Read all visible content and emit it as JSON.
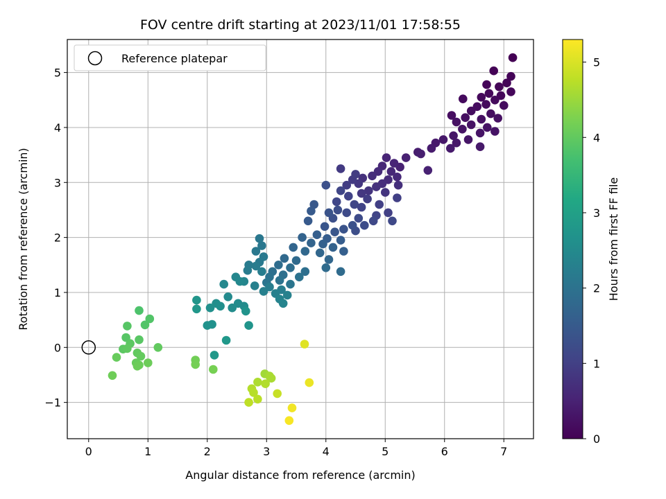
{
  "chart_data": {
    "type": "scatter",
    "title": "FOV centre drift starting at 2023/11/01 17:58:55",
    "xlabel": "Angular distance from reference (arcmin)",
    "ylabel": "Rotation from reference (arcmin)",
    "xlim": [
      -0.36,
      7.5
    ],
    "ylim": [
      -1.66,
      5.6
    ],
    "xticks": [
      0,
      1,
      2,
      3,
      4,
      5,
      6,
      7
    ],
    "yticks": [
      -1,
      0,
      1,
      2,
      3,
      4,
      5
    ],
    "ytick_labels": [
      "−1",
      "0",
      "1",
      "2",
      "3",
      "4",
      "5"
    ],
    "grid": true,
    "legend": {
      "location": "top-left",
      "entries": [
        "Reference platepar"
      ]
    },
    "reference_point": {
      "x": 0,
      "y": 0,
      "marker": "open circle"
    },
    "colorbar": {
      "label": "Hours from first FF file",
      "colormap": "viridis",
      "range": [
        0,
        5.3
      ],
      "ticks": [
        0,
        1,
        2,
        3,
        4,
        5
      ]
    },
    "points": [
      [
        7.15,
        5.27,
        0.0
      ],
      [
        6.83,
        5.03,
        0.03
      ],
      [
        7.12,
        4.93,
        0.05
      ],
      [
        7.05,
        4.81,
        0.05
      ],
      [
        6.71,
        4.78,
        0.06
      ],
      [
        6.92,
        4.74,
        0.07
      ],
      [
        7.12,
        4.65,
        0.09
      ],
      [
        6.75,
        4.62,
        0.1
      ],
      [
        6.95,
        4.58,
        0.1
      ],
      [
        6.62,
        4.55,
        0.12
      ],
      [
        6.85,
        4.5,
        0.13
      ],
      [
        6.31,
        4.52,
        0.14
      ],
      [
        6.7,
        4.42,
        0.15
      ],
      [
        7.0,
        4.4,
        0.16
      ],
      [
        6.55,
        4.38,
        0.17
      ],
      [
        6.45,
        4.3,
        0.18
      ],
      [
        6.78,
        4.25,
        0.19
      ],
      [
        6.12,
        4.22,
        0.2
      ],
      [
        6.35,
        4.18,
        0.21
      ],
      [
        6.62,
        4.15,
        0.22
      ],
      [
        6.9,
        4.17,
        0.23
      ],
      [
        6.2,
        4.1,
        0.24
      ],
      [
        6.45,
        4.05,
        0.25
      ],
      [
        6.72,
        4.0,
        0.26
      ],
      [
        6.3,
        3.97,
        0.27
      ],
      [
        6.85,
        3.93,
        0.28
      ],
      [
        6.6,
        3.9,
        0.29
      ],
      [
        6.15,
        3.85,
        0.3
      ],
      [
        6.4,
        3.78,
        0.31
      ],
      [
        5.98,
        3.78,
        0.33
      ],
      [
        6.2,
        3.72,
        0.34
      ],
      [
        6.6,
        3.65,
        0.36
      ],
      [
        5.85,
        3.72,
        0.37
      ],
      [
        6.1,
        3.62,
        0.38
      ],
      [
        5.78,
        3.62,
        0.4
      ],
      [
        5.55,
        3.55,
        0.42
      ],
      [
        5.6,
        3.52,
        0.45
      ],
      [
        5.35,
        3.45,
        0.48
      ],
      [
        5.72,
        3.22,
        0.5
      ],
      [
        5.25,
        3.28,
        0.5
      ],
      [
        5.02,
        3.45,
        0.55
      ],
      [
        5.15,
        3.35,
        0.55
      ],
      [
        4.95,
        3.3,
        0.6
      ],
      [
        5.1,
        3.2,
        0.6
      ],
      [
        5.2,
        3.1,
        0.62
      ],
      [
        4.88,
        3.2,
        0.65
      ],
      [
        5.05,
        3.05,
        0.65
      ],
      [
        4.78,
        3.12,
        0.7
      ],
      [
        4.95,
        2.98,
        0.7
      ],
      [
        5.22,
        2.95,
        0.72
      ],
      [
        4.62,
        3.08,
        0.75
      ],
      [
        4.85,
        2.92,
        0.75
      ],
      [
        4.72,
        2.85,
        0.8
      ],
      [
        5.0,
        2.82,
        0.8
      ],
      [
        4.55,
        2.98,
        0.85
      ],
      [
        4.6,
        2.8,
        0.85
      ],
      [
        4.45,
        3.05,
        0.9
      ],
      [
        4.25,
        3.25,
        0.9
      ],
      [
        4.5,
        3.15,
        0.92
      ],
      [
        4.35,
        2.95,
        0.95
      ],
      [
        4.7,
        2.7,
        0.95
      ],
      [
        5.2,
        2.72,
        1.0
      ],
      [
        4.9,
        2.6,
        1.0
      ],
      [
        5.05,
        2.45,
        1.0
      ],
      [
        4.38,
        2.75,
        1.05
      ],
      [
        4.6,
        2.55,
        1.05
      ],
      [
        4.85,
        2.4,
        1.08
      ],
      [
        4.25,
        2.85,
        1.1
      ],
      [
        4.48,
        2.6,
        1.1
      ],
      [
        4.18,
        2.65,
        1.12
      ],
      [
        4.8,
        2.3,
        1.15
      ],
      [
        5.12,
        2.3,
        1.15
      ],
      [
        4.35,
        2.45,
        1.2
      ],
      [
        4.55,
        2.35,
        1.2
      ],
      [
        4.65,
        2.22,
        1.22
      ],
      [
        4.5,
        2.12,
        1.25
      ],
      [
        4.2,
        2.5,
        1.25
      ],
      [
        4.0,
        2.95,
        1.3
      ],
      [
        4.12,
        2.35,
        1.3
      ],
      [
        4.45,
        2.22,
        1.32
      ],
      [
        4.3,
        2.15,
        1.35
      ],
      [
        4.05,
        2.45,
        1.35
      ],
      [
        3.98,
        2.2,
        1.4
      ],
      [
        4.15,
        2.1,
        1.42
      ],
      [
        3.8,
        2.6,
        1.45
      ],
      [
        3.75,
        2.48,
        1.5
      ],
      [
        3.7,
        2.3,
        1.5
      ],
      [
        4.02,
        1.98,
        1.55
      ],
      [
        4.25,
        1.95,
        1.55
      ],
      [
        4.3,
        1.75,
        1.6
      ],
      [
        3.85,
        2.05,
        1.6
      ],
      [
        3.95,
        1.88,
        1.62
      ],
      [
        4.12,
        1.82,
        1.65
      ],
      [
        3.6,
        2.0,
        1.68
      ],
      [
        3.75,
        1.9,
        1.7
      ],
      [
        3.45,
        1.82,
        1.72
      ],
      [
        4.05,
        1.6,
        1.75
      ],
      [
        3.9,
        1.72,
        1.75
      ],
      [
        3.65,
        1.75,
        1.78
      ],
      [
        3.3,
        1.62,
        1.8
      ],
      [
        3.5,
        1.58,
        1.82
      ],
      [
        4.0,
        1.45,
        1.85
      ],
      [
        4.25,
        1.38,
        1.85
      ],
      [
        3.2,
        1.5,
        1.88
      ],
      [
        3.4,
        1.45,
        1.9
      ],
      [
        3.65,
        1.38,
        1.92
      ],
      [
        3.1,
        1.38,
        1.95
      ],
      [
        3.28,
        1.32,
        1.95
      ],
      [
        3.55,
        1.28,
        2.0
      ],
      [
        3.05,
        1.28,
        2.0
      ],
      [
        3.22,
        1.22,
        2.02
      ],
      [
        3.4,
        1.15,
        2.05
      ],
      [
        3.0,
        1.18,
        2.05
      ],
      [
        2.88,
        1.98,
        2.1
      ],
      [
        2.92,
        1.85,
        2.1
      ],
      [
        2.82,
        1.75,
        2.12
      ],
      [
        2.95,
        1.65,
        2.15
      ],
      [
        2.88,
        1.55,
        2.15
      ],
      [
        2.7,
        1.5,
        2.18
      ],
      [
        2.82,
        1.48,
        2.2
      ],
      [
        2.68,
        1.4,
        2.2
      ],
      [
        2.92,
        1.38,
        2.22
      ],
      [
        3.05,
        1.1,
        2.25
      ],
      [
        3.25,
        1.05,
        2.25
      ],
      [
        2.95,
        1.02,
        2.28
      ],
      [
        3.15,
        0.98,
        2.3
      ],
      [
        2.8,
        1.12,
        2.3
      ],
      [
        3.35,
        0.95,
        2.32
      ],
      [
        3.22,
        0.88,
        2.35
      ],
      [
        3.28,
        0.8,
        2.38
      ],
      [
        2.62,
        1.2,
        2.4
      ],
      [
        2.48,
        1.28,
        2.42
      ],
      [
        2.55,
        1.2,
        2.45
      ],
      [
        2.28,
        1.15,
        2.45
      ],
      [
        2.35,
        0.92,
        2.5
      ],
      [
        2.52,
        0.8,
        2.52
      ],
      [
        2.62,
        0.75,
        2.55
      ],
      [
        2.42,
        0.72,
        2.55
      ],
      [
        2.15,
        0.8,
        2.58
      ],
      [
        2.22,
        0.75,
        2.6
      ],
      [
        2.05,
        0.72,
        2.62
      ],
      [
        2.08,
        0.42,
        2.65
      ],
      [
        2.0,
        0.4,
        2.68
      ],
      [
        2.65,
        0.66,
        2.7
      ],
      [
        2.7,
        0.4,
        2.72
      ],
      [
        1.82,
        0.86,
        2.75
      ],
      [
        1.82,
        0.7,
        2.78
      ],
      [
        2.32,
        0.13,
        2.8
      ],
      [
        2.12,
        -0.14,
        2.82
      ],
      [
        0.85,
        0.67,
        3.8
      ],
      [
        0.95,
        0.41,
        3.85
      ],
      [
        1.03,
        0.52,
        3.85
      ],
      [
        0.65,
        0.39,
        3.9
      ],
      [
        0.63,
        0.18,
        3.9
      ],
      [
        0.85,
        0.14,
        3.92
      ],
      [
        0.7,
        0.07,
        3.95
      ],
      [
        0.58,
        -0.03,
        3.95
      ],
      [
        0.65,
        -0.02,
        3.98
      ],
      [
        0.82,
        -0.1,
        4.0
      ],
      [
        1.17,
        0.0,
        4.0
      ],
      [
        0.88,
        -0.16,
        4.02
      ],
      [
        0.47,
        -0.18,
        4.05
      ],
      [
        0.8,
        -0.28,
        4.05
      ],
      [
        0.85,
        -0.32,
        4.08
      ],
      [
        0.82,
        -0.34,
        4.1
      ],
      [
        1.0,
        -0.28,
        4.1
      ],
      [
        0.4,
        -0.51,
        4.12
      ],
      [
        1.8,
        -0.23,
        4.15
      ],
      [
        1.8,
        -0.31,
        4.18
      ],
      [
        2.1,
        -0.4,
        4.2
      ],
      [
        2.97,
        -0.48,
        4.55
      ],
      [
        3.05,
        -0.52,
        4.6
      ],
      [
        3.08,
        -0.56,
        4.62
      ],
      [
        2.85,
        -0.63,
        4.65
      ],
      [
        2.98,
        -0.66,
        4.68
      ],
      [
        2.75,
        -0.75,
        4.7
      ],
      [
        2.78,
        -0.82,
        4.72
      ],
      [
        2.85,
        -0.94,
        4.75
      ],
      [
        2.7,
        -1.0,
        4.78
      ],
      [
        3.18,
        -0.84,
        4.85
      ],
      [
        3.64,
        0.06,
        5.05
      ],
      [
        3.72,
        -0.64,
        5.15
      ],
      [
        3.43,
        -1.1,
        5.2
      ],
      [
        3.38,
        -1.33,
        5.25
      ]
    ]
  }
}
